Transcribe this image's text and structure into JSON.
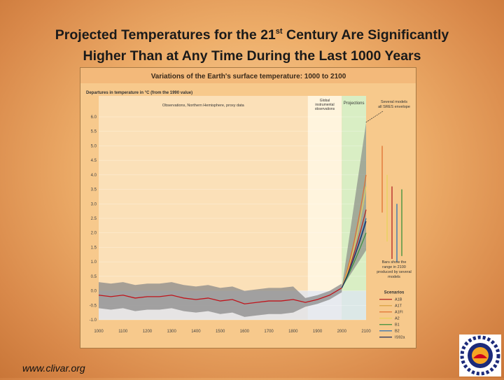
{
  "slide": {
    "title_line1_a": "Projected Temperatures for the 21",
    "title_line1_sup": "st",
    "title_line1_b": " Century Are Significantly",
    "title_line2": "Higher Than at Any Time During the Last 1000 Years",
    "footer": "www.clivar.org"
  },
  "chart_data": {
    "type": "line",
    "title": "Variations of the Earth's surface temperature: 1000 to 2100",
    "ylabel": "Departures in temperature in °C (from the 1990 value)",
    "xlabel": "",
    "xlim": [
      1000,
      2100
    ],
    "ylim": [
      -1.0,
      6.0
    ],
    "x_ticks": [
      "1000",
      "1100",
      "1200",
      "1300",
      "1400",
      "1500",
      "1600",
      "1700",
      "1800",
      "1900",
      "2000",
      "2100"
    ],
    "y_ticks": [
      "6.0",
      "5.5",
      "5.0",
      "4.5",
      "4.0",
      "3.5",
      "3.0",
      "2.5",
      "2.0",
      "1.5",
      "1.0",
      "0.5",
      "0.0",
      "-0.5",
      "-1.0"
    ],
    "period_labels": {
      "observations": "Observations, Northern Hemisphere, proxy data",
      "global_instruments": "Global instrumental observations",
      "projections": "Projections",
      "several_models": "Several models all SRES envelope"
    },
    "observations_series": {
      "name": "Northern Hemisphere proxy / instrumental",
      "x": [
        1000,
        1050,
        1100,
        1150,
        1200,
        1250,
        1300,
        1350,
        1400,
        1450,
        1500,
        1550,
        1600,
        1650,
        1700,
        1750,
        1800,
        1850,
        1900,
        1950,
        2000
      ],
      "values": [
        -0.15,
        -0.2,
        -0.15,
        -0.25,
        -0.2,
        -0.2,
        -0.15,
        -0.25,
        -0.3,
        -0.25,
        -0.35,
        -0.3,
        -0.45,
        -0.4,
        -0.35,
        -0.35,
        -0.3,
        -0.4,
        -0.3,
        -0.15,
        0.1
      ]
    },
    "scenarios": [
      {
        "name": "A1B",
        "color": "#b22222",
        "values_2050": 1.1,
        "value_2100": 2.8
      },
      {
        "name": "A1T",
        "color": "#d9a040",
        "values_2050": 1.0,
        "value_2100": 2.5
      },
      {
        "name": "A1FI",
        "color": "#e07030",
        "values_2050": 1.3,
        "value_2100": 4.0
      },
      {
        "name": "A2",
        "color": "#e8d25a",
        "values_2050": 1.1,
        "value_2100": 3.6
      },
      {
        "name": "B1",
        "color": "#3a8f3a",
        "values_2050": 0.9,
        "value_2100": 2.0
      },
      {
        "name": "B2",
        "color": "#2c6fb5",
        "values_2050": 1.0,
        "value_2100": 2.5
      },
      {
        "name": "IS92a",
        "color": "#1e2a5a",
        "values_2050": 1.0,
        "value_2100": 2.4
      }
    ],
    "model_range_bars": [
      {
        "low": 2.7,
        "high": 5.0,
        "color": "#e07030"
      },
      {
        "low": 1.7,
        "high": 4.0,
        "color": "#e8d25a"
      },
      {
        "low": 1.1,
        "high": 3.6,
        "color": "#b22222"
      },
      {
        "low": 1.0,
        "high": 3.0,
        "color": "#2c6fb5"
      },
      {
        "low": 1.2,
        "high": 3.5,
        "color": "#3a8f3a"
      }
    ],
    "envelope_2100": [
      1.4,
      5.8
    ],
    "bars_note": "Bars show the range in 2100 produced by several models",
    "legend_title": "Scenarios"
  },
  "colors": {
    "obs_band": "#fbe0b8",
    "instrument_band": "#fff4dd",
    "projection_band": "#d9eec4",
    "zero_band": "#dde6f7"
  }
}
